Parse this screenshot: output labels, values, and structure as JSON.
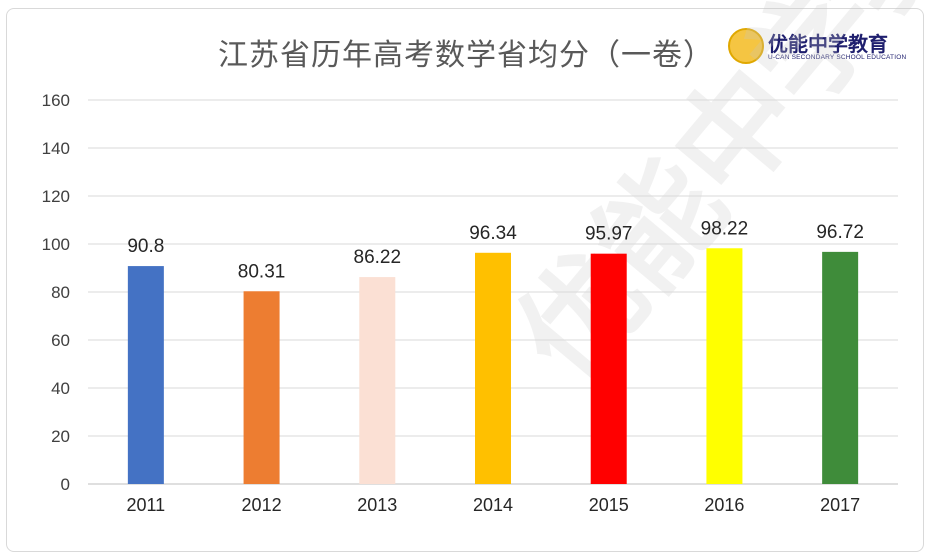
{
  "title": "江苏省历年高考数学省均分（一卷）",
  "logo": {
    "name": "优能中学教育",
    "subtitle": "U-CAN SECONDARY SCHOOL EDUCATION"
  },
  "watermark": "优能中学教育",
  "chart_data": {
    "type": "bar",
    "title": "江苏省历年高考数学省均分（一卷）",
    "categories": [
      "2011",
      "2012",
      "2013",
      "2014",
      "2015",
      "2016",
      "2017"
    ],
    "values": [
      90.8,
      80.31,
      86.22,
      96.34,
      95.97,
      98.22,
      96.72
    ],
    "data_labels": [
      "90.8",
      "80.31",
      "86.22",
      "96.34",
      "95.97",
      "98.22",
      "96.72"
    ],
    "bar_colors": [
      "#4472c4",
      "#ed7d31",
      "#fbe0d4",
      "#ffc000",
      "#ff0000",
      "#ffff00",
      "#3f8c3a"
    ],
    "ylim": [
      0,
      160
    ],
    "yticks": [
      0,
      20,
      40,
      60,
      80,
      100,
      120,
      140,
      160
    ],
    "grid": true,
    "legend": "none",
    "xlabel": "",
    "ylabel": ""
  }
}
